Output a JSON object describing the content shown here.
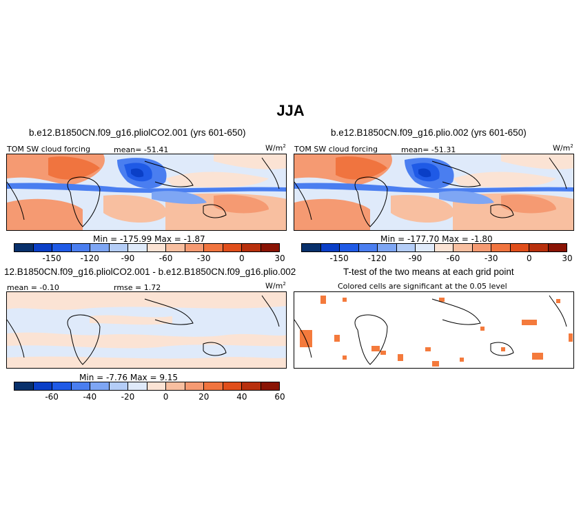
{
  "title": "JJA",
  "panels": [
    {
      "heading": "b.e12.B1850CN.f09_g16.pliolCO2.001 (yrs 601-650)",
      "left_label": "TOM SW cloud forcing",
      "center_label": "mean= -51.41",
      "units": "W/m",
      "units_sup": "2",
      "minmax": "Min = -175.99  Max = -1.87",
      "tick_labels": [
        "-150",
        "-120",
        "-90",
        "-60",
        "-30",
        "0",
        "30"
      ]
    },
    {
      "heading": "b.e12.B1850CN.f09_g16.plio.002 (yrs 601-650)",
      "left_label": "TOM SW cloud forcing",
      "center_label": "mean= -51.31",
      "units": "W/m",
      "units_sup": "2",
      "minmax": "Min = -177.70  Max = -1.80",
      "tick_labels": [
        "-150",
        "-120",
        "-90",
        "-60",
        "-30",
        "0",
        "30"
      ]
    },
    {
      "heading": "12.B1850CN.f09_g16.pliolCO2.001 - b.e12.B1850CN.f09_g16.plio.002",
      "left_label": "mean = -0.10",
      "center_label": "rmse = 1.72",
      "units": "W/m",
      "units_sup": "2",
      "minmax": "Min = -7.76  Max = 9.15",
      "tick_labels": [
        "-60",
        "-40",
        "-20",
        "0",
        "20",
        "40",
        "60"
      ]
    },
    {
      "heading": "T-test of the two means at each grid point",
      "subheading": "Colored cells are significant at the 0.05 level"
    }
  ],
  "colorbar_colors": [
    "#08306b",
    "#0a3fc7",
    "#1f5ae6",
    "#4a7ef0",
    "#7ea6f4",
    "#b4cdf7",
    "#dfeafa",
    "#fbe3d4",
    "#f8bfa0",
    "#f59a72",
    "#f0743f",
    "#e04e1b",
    "#b8300d",
    "#8a1405"
  ],
  "colors": {
    "ocean_blue": "#dfeafa",
    "warm": "#f59a72",
    "deep_blue": "#2a5ee6",
    "mid_blue": "#7ea6f4",
    "sig_orange": "#f47a3c"
  }
}
